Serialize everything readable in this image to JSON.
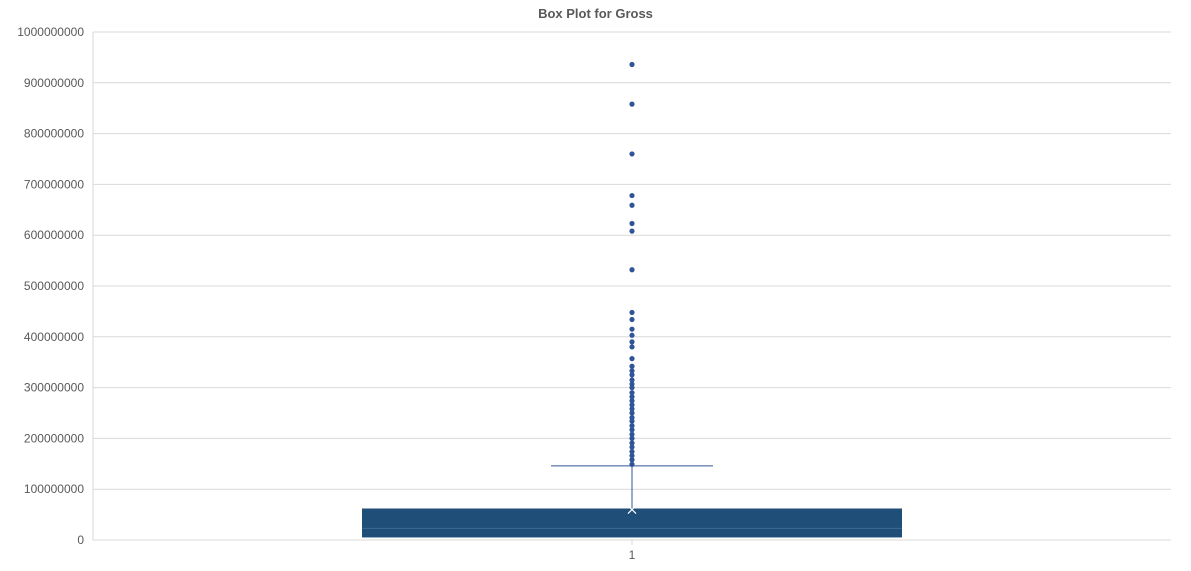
{
  "chart_data": {
    "type": "box",
    "title": "Box Plot for Gross",
    "xlabel": "",
    "ylabel": "",
    "categories": [
      "1"
    ],
    "ylim": [
      0,
      1000000000
    ],
    "yticks": [
      0,
      100000000,
      200000000,
      300000000,
      400000000,
      500000000,
      600000000,
      700000000,
      800000000,
      900000000,
      1000000000
    ],
    "ytick_labels": [
      "0",
      "100000000",
      "200000000",
      "300000000",
      "400000000",
      "500000000",
      "600000000",
      "700000000",
      "800000000",
      "900000000",
      "1000000000"
    ],
    "grid": true,
    "legend": "none",
    "box": {
      "min": 0,
      "q1": 5000000,
      "median": 23000000,
      "q3": 62000000,
      "whisker_high": 146000000,
      "mean": 60000000
    },
    "outliers": [
      936000000,
      858000000,
      760000000,
      678000000,
      659000000,
      623000000,
      608000000,
      532000000,
      448000000,
      434000000,
      415000000,
      403000000,
      390000000,
      380000000,
      357000000,
      342000000,
      333000000,
      325000000,
      315000000,
      307000000,
      300000000,
      290000000,
      282000000,
      274000000,
      266000000,
      258000000,
      250000000,
      241000000,
      234000000,
      225000000,
      217000000,
      208000000,
      200000000,
      191000000,
      183000000,
      174000000,
      166000000,
      158000000,
      149000000
    ],
    "colors": {
      "box_fill": "#1f4e79",
      "point": "#2f5597",
      "whisker": "#2f5597",
      "grid": "#d9d9d9",
      "text": "#595959"
    }
  }
}
